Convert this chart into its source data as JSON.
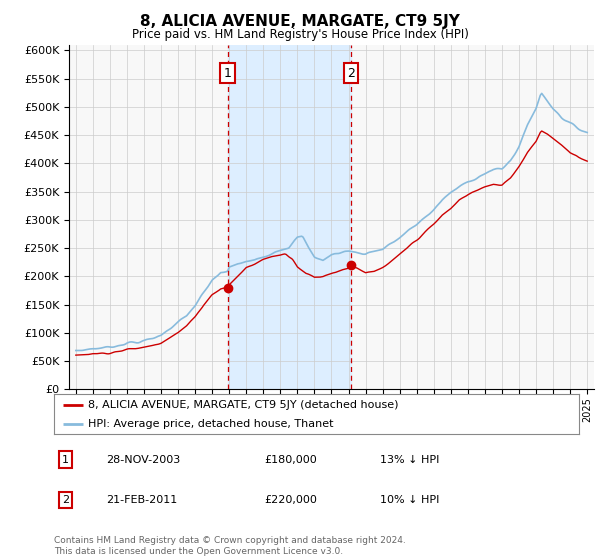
{
  "title": "8, ALICIA AVENUE, MARGATE, CT9 5JY",
  "subtitle": "Price paid vs. HM Land Registry's House Price Index (HPI)",
  "legend_label_red": "8, ALICIA AVENUE, MARGATE, CT9 5JY (detached house)",
  "legend_label_blue": "HPI: Average price, detached house, Thanet",
  "transactions": [
    {
      "num": 1,
      "date": "28-NOV-2003",
      "price": "£180,000",
      "note": "13% ↓ HPI",
      "year": 2003.9
    },
    {
      "num": 2,
      "date": "21-FEB-2011",
      "price": "£220,000",
      "note": "10% ↓ HPI",
      "year": 2011.13
    }
  ],
  "footer": "Contains HM Land Registry data © Crown copyright and database right 2024.\nThis data is licensed under the Open Government Licence v3.0.",
  "ylim": [
    0,
    610000
  ],
  "yticks": [
    0,
    50000,
    100000,
    150000,
    200000,
    250000,
    300000,
    350000,
    400000,
    450000,
    500000,
    550000,
    600000
  ],
  "ytick_labels": [
    "£0",
    "£50K",
    "£100K",
    "£150K",
    "£200K",
    "£250K",
    "£300K",
    "£350K",
    "£400K",
    "£450K",
    "£500K",
    "£550K",
    "£600K"
  ],
  "xlim_start": 1994.6,
  "xlim_end": 2025.4,
  "transaction_marker_color": "#cc0000",
  "transaction_box_color": "#cc0000",
  "shaded_region_color": "#ddeeff",
  "red_line_color": "#cc0000",
  "blue_line_color": "#88bbdd",
  "sale_dot_color": "#cc0000",
  "grid_color": "#cccccc",
  "bg_color": "#f8f8f8"
}
